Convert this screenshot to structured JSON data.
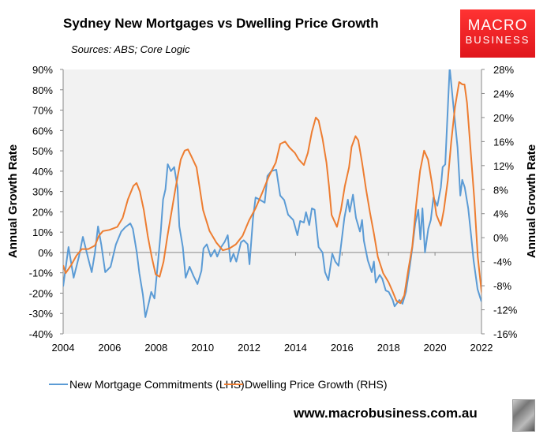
{
  "chart_data": {
    "type": "line",
    "title": "Sydney New Mortgages vs Dwelling Price Growth",
    "subtitle": "Sources: ABS; Core Logic",
    "xlabel": "",
    "ylabel_left": "Annual Growth Rate",
    "ylabel_right": "Annual Growth Rate",
    "xlim": [
      2004,
      2022
    ],
    "x_ticks": [
      "2004",
      "2006",
      "2008",
      "2010",
      "2012",
      "2014",
      "2016",
      "2018",
      "2020",
      "2022"
    ],
    "ylim_left": [
      -40,
      90
    ],
    "ylim_right": [
      -16,
      28
    ],
    "y_ticks_left": [
      "90%",
      "80%",
      "70%",
      "60%",
      "50%",
      "40%",
      "30%",
      "20%",
      "10%",
      "0%",
      "-10%",
      "-20%",
      "-30%",
      "-40%"
    ],
    "y_ticks_right": [
      "28%",
      "24%",
      "20%",
      "16%",
      "12%",
      "8%",
      "4%",
      "0%",
      "-4%",
      "-8%",
      "-12%",
      "-16%"
    ],
    "grid": false,
    "legend_position": "bottom",
    "series": [
      {
        "name": "New Mortgage Commitments (LHS)",
        "axis": "left",
        "color": "#5b9bd5",
        "points": [
          [
            2004.0,
            -16.7
          ],
          [
            2004.23,
            2.7
          ],
          [
            2004.45,
            -12.4
          ],
          [
            2004.68,
            -2
          ],
          [
            2004.85,
            7.7
          ],
          [
            2005.08,
            -3
          ],
          [
            2005.23,
            -9.7
          ],
          [
            2005.37,
            0
          ],
          [
            2005.5,
            12.8
          ],
          [
            2005.64,
            3.9
          ],
          [
            2005.81,
            -9.7
          ],
          [
            2006.04,
            -7
          ],
          [
            2006.27,
            3.9
          ],
          [
            2006.5,
            10.3
          ],
          [
            2006.67,
            12.4
          ],
          [
            2006.89,
            14.3
          ],
          [
            2007.0,
            11.7
          ],
          [
            2007.17,
            0
          ],
          [
            2007.28,
            -10.3
          ],
          [
            2007.43,
            -20.7
          ],
          [
            2007.54,
            -31.8
          ],
          [
            2007.68,
            -25
          ],
          [
            2007.79,
            -19.4
          ],
          [
            2007.93,
            -22.6
          ],
          [
            2008.08,
            -5
          ],
          [
            2008.2,
            10.3
          ],
          [
            2008.3,
            26
          ],
          [
            2008.4,
            31
          ],
          [
            2008.5,
            43.4
          ],
          [
            2008.64,
            40
          ],
          [
            2008.78,
            42
          ],
          [
            2008.92,
            32
          ],
          [
            2009.0,
            12.8
          ],
          [
            2009.15,
            2.7
          ],
          [
            2009.27,
            -12.4
          ],
          [
            2009.44,
            -7
          ],
          [
            2009.61,
            -11.6
          ],
          [
            2009.78,
            -15.5
          ],
          [
            2009.95,
            -9
          ],
          [
            2010.04,
            2
          ],
          [
            2010.18,
            4
          ],
          [
            2010.35,
            -2
          ],
          [
            2010.52,
            1.3
          ],
          [
            2010.63,
            -2
          ],
          [
            2010.8,
            2.7
          ],
          [
            2010.95,
            5.2
          ],
          [
            2011.08,
            8.5
          ],
          [
            2011.2,
            -4.5
          ],
          [
            2011.33,
            -0.6
          ],
          [
            2011.45,
            -4.5
          ],
          [
            2011.65,
            5
          ],
          [
            2011.77,
            6
          ],
          [
            2011.94,
            4
          ],
          [
            2012.02,
            -5.8
          ],
          [
            2012.17,
            17
          ],
          [
            2012.28,
            27
          ],
          [
            2012.45,
            26
          ],
          [
            2012.67,
            24.5
          ],
          [
            2012.79,
            37.6
          ],
          [
            2012.96,
            40
          ],
          [
            2013.17,
            40.7
          ],
          [
            2013.34,
            28
          ],
          [
            2013.51,
            25.8
          ],
          [
            2013.68,
            18.6
          ],
          [
            2013.9,
            16
          ],
          [
            2014.08,
            8.5
          ],
          [
            2014.2,
            15.5
          ],
          [
            2014.36,
            14.7
          ],
          [
            2014.45,
            19.8
          ],
          [
            2014.59,
            13.5
          ],
          [
            2014.7,
            21.7
          ],
          [
            2014.82,
            21
          ],
          [
            2014.99,
            2.7
          ],
          [
            2015.16,
            0
          ],
          [
            2015.27,
            -9.7
          ],
          [
            2015.41,
            -13.6
          ],
          [
            2015.58,
            -0.6
          ],
          [
            2015.71,
            -4.5
          ],
          [
            2015.85,
            -6.5
          ],
          [
            2015.99,
            6.5
          ],
          [
            2016.1,
            17
          ],
          [
            2016.25,
            26
          ],
          [
            2016.33,
            20
          ],
          [
            2016.47,
            28.4
          ],
          [
            2016.6,
            17
          ],
          [
            2016.77,
            10.3
          ],
          [
            2016.86,
            16
          ],
          [
            2016.94,
            5.8
          ],
          [
            2017.11,
            -3.9
          ],
          [
            2017.28,
            -9.7
          ],
          [
            2017.37,
            -4.5
          ],
          [
            2017.45,
            -14.8
          ],
          [
            2017.62,
            -11
          ],
          [
            2017.73,
            -12.9
          ],
          [
            2017.88,
            -18.7
          ],
          [
            2018.01,
            -19.4
          ],
          [
            2018.18,
            -23.3
          ],
          [
            2018.26,
            -26.5
          ],
          [
            2018.47,
            -23.3
          ],
          [
            2018.6,
            -25.2
          ],
          [
            2018.75,
            -19.4
          ],
          [
            2018.92,
            -6.5
          ],
          [
            2019.03,
            2.7
          ],
          [
            2019.15,
            14.3
          ],
          [
            2019.28,
            21
          ],
          [
            2019.37,
            6.5
          ],
          [
            2019.46,
            21.7
          ],
          [
            2019.57,
            0
          ],
          [
            2019.71,
            11.7
          ],
          [
            2019.82,
            16
          ],
          [
            2019.93,
            27
          ],
          [
            2020.1,
            23
          ],
          [
            2020.25,
            32
          ],
          [
            2020.33,
            42
          ],
          [
            2020.44,
            43.3
          ],
          [
            2020.63,
            91
          ],
          [
            2020.8,
            71
          ],
          [
            2020.97,
            51.6
          ],
          [
            2021.09,
            28
          ],
          [
            2021.17,
            35.7
          ],
          [
            2021.28,
            32
          ],
          [
            2021.43,
            21.7
          ],
          [
            2021.55,
            8.9
          ],
          [
            2021.66,
            -3.9
          ],
          [
            2021.83,
            -18
          ],
          [
            2021.99,
            -23.9
          ],
          [
            2022.07,
            -21.3
          ],
          [
            2022.16,
            -30.3
          ]
        ]
      },
      {
        "name": "Dwelling Price Growth (RHS)",
        "axis": "right",
        "color": "#ed7d31",
        "points": [
          [
            2004.0,
            -4.6
          ],
          [
            2004.11,
            -5.9
          ],
          [
            2004.34,
            -4.6
          ],
          [
            2004.57,
            -3.0
          ],
          [
            2004.8,
            -1.9
          ],
          [
            2005.08,
            -1.9
          ],
          [
            2005.37,
            -1.3
          ],
          [
            2005.54,
            0.3
          ],
          [
            2005.71,
            1.1
          ],
          [
            2005.99,
            1.3
          ],
          [
            2006.33,
            1.8
          ],
          [
            2006.56,
            3.3
          ],
          [
            2006.79,
            6.4
          ],
          [
            2007.02,
            8.6
          ],
          [
            2007.16,
            9.1
          ],
          [
            2007.3,
            7.7
          ],
          [
            2007.47,
            4.6
          ],
          [
            2007.64,
            0.3
          ],
          [
            2007.81,
            -3.2
          ],
          [
            2007.98,
            -6.1
          ],
          [
            2008.15,
            -6.5
          ],
          [
            2008.32,
            -4.0
          ],
          [
            2008.49,
            0.3
          ],
          [
            2008.66,
            4.2
          ],
          [
            2008.83,
            8.1
          ],
          [
            2009.06,
            13.0
          ],
          [
            2009.23,
            14.5
          ],
          [
            2009.37,
            14.7
          ],
          [
            2009.51,
            13.6
          ],
          [
            2009.74,
            11.7
          ],
          [
            2010.02,
            4.6
          ],
          [
            2010.3,
            1.1
          ],
          [
            2010.59,
            -0.8
          ],
          [
            2010.87,
            -2.1
          ],
          [
            2011.15,
            -1.8
          ],
          [
            2011.43,
            -1.1
          ],
          [
            2011.72,
            0.3
          ],
          [
            2012.0,
            2.9
          ],
          [
            2012.28,
            4.9
          ],
          [
            2012.57,
            7.5
          ],
          [
            2012.85,
            10.2
          ],
          [
            2013.15,
            12.5
          ],
          [
            2013.34,
            15.6
          ],
          [
            2013.55,
            16.0
          ],
          [
            2013.74,
            15.0
          ],
          [
            2013.97,
            14.1
          ],
          [
            2014.14,
            13.0
          ],
          [
            2014.36,
            12.1
          ],
          [
            2014.53,
            14.1
          ],
          [
            2014.7,
            17.6
          ],
          [
            2014.87,
            20.0
          ],
          [
            2014.99,
            19.5
          ],
          [
            2015.16,
            16.5
          ],
          [
            2015.33,
            12.5
          ],
          [
            2015.44,
            8.6
          ],
          [
            2015.55,
            3.8
          ],
          [
            2015.78,
            1.8
          ],
          [
            2015.95,
            4.6
          ],
          [
            2016.12,
            8.6
          ],
          [
            2016.3,
            11.7
          ],
          [
            2016.41,
            15.1
          ],
          [
            2016.58,
            16.9
          ],
          [
            2016.7,
            16.2
          ],
          [
            2016.86,
            12.5
          ],
          [
            2017.03,
            8.1
          ],
          [
            2017.2,
            4.2
          ],
          [
            2017.37,
            0.7
          ],
          [
            2017.54,
            -3.2
          ],
          [
            2017.77,
            -5.9
          ],
          [
            2018.0,
            -7.4
          ],
          [
            2018.17,
            -8.9
          ],
          [
            2018.34,
            -10.5
          ],
          [
            2018.51,
            -10.9
          ],
          [
            2018.68,
            -9.6
          ],
          [
            2018.85,
            -5.4
          ],
          [
            2019.02,
            -1.5
          ],
          [
            2019.19,
            5.5
          ],
          [
            2019.36,
            11.2
          ],
          [
            2019.53,
            14.5
          ],
          [
            2019.7,
            13.0
          ],
          [
            2019.87,
            9.0
          ],
          [
            2020.06,
            3.8
          ],
          [
            2020.25,
            2.0
          ],
          [
            2020.38,
            4.6
          ],
          [
            2020.55,
            9.5
          ],
          [
            2020.7,
            16.0
          ],
          [
            2020.86,
            21.7
          ],
          [
            2021.04,
            25.9
          ],
          [
            2021.18,
            25.5
          ],
          [
            2021.27,
            25.5
          ],
          [
            2021.38,
            22.4
          ],
          [
            2021.52,
            15.1
          ],
          [
            2021.69,
            6.4
          ],
          [
            2021.84,
            -3.2
          ],
          [
            2022.0,
            -8.9
          ],
          [
            2022.15,
            -12.0
          ]
        ]
      }
    ]
  },
  "logo": {
    "line1": "MACRO",
    "line2": "BUSINESS"
  },
  "footer": {
    "url": "www.macrobusiness.com.au"
  }
}
